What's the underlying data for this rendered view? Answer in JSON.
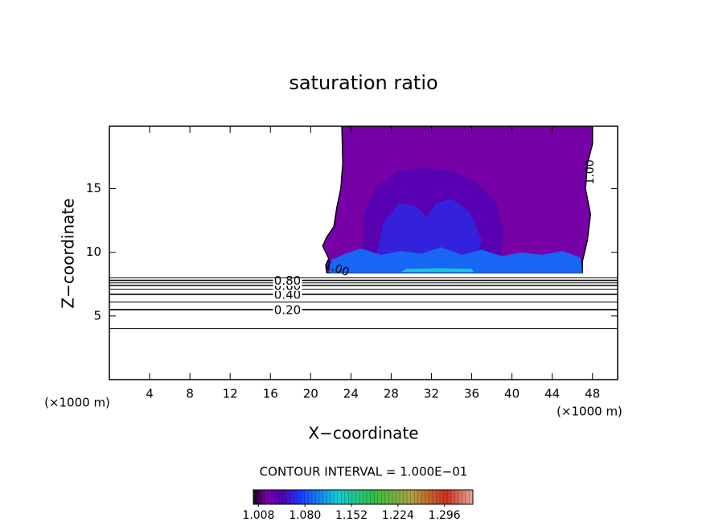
{
  "chart_data": {
    "type": "contour",
    "title": "saturation ratio",
    "x_label": "X−coordinate",
    "y_label": "Z−coordinate",
    "x_unit": "(×1000 m)",
    "interval_note": "CONTOUR INTERVAL = 1.000E−01",
    "xlim": [
      0,
      50.5
    ],
    "ylim": [
      0,
      19.9
    ],
    "xticks": [
      4,
      8,
      12,
      16,
      20,
      24,
      28,
      32,
      36,
      40,
      44,
      48
    ],
    "yticks": [
      5,
      10,
      15
    ],
    "contours": [
      {
        "level": 0.1,
        "z": 4.0
      },
      {
        "level": 0.2,
        "label": "0.20",
        "z": 5.5
      },
      {
        "level": 0.3,
        "z": 6.1
      },
      {
        "level": 0.4,
        "label": "0.40",
        "z": 6.7
      },
      {
        "level": 0.5,
        "z": 7.1
      },
      {
        "level": 0.6,
        "label": "0.60",
        "z": 7.4
      },
      {
        "level": 0.7,
        "z": 7.6
      },
      {
        "level": 0.8,
        "label": "0.80",
        "z": 7.8
      },
      {
        "level": 0.9,
        "z": 8.0
      }
    ],
    "cloud_contour": {
      "level": 1.0,
      "label": "1.00"
    },
    "regions": [
      {
        "value": 1.02,
        "x": [
          21.6,
          21.5,
          21.8,
          21.2,
          21.6,
          22.3,
          22.6,
          23.0,
          23.2,
          23.1,
          48.0,
          48.0,
          47.5,
          47.3,
          47.8,
          47.5,
          47.3,
          47.0,
          47.0
        ],
        "z": [
          8.4,
          9.0,
          9.5,
          10.5,
          11.2,
          12.0,
          13.5,
          15.0,
          17.0,
          19.9,
          19.9,
          18.5,
          17.0,
          15.0,
          13.0,
          11.0,
          10.3,
          9.3,
          8.4
        ]
      },
      {
        "value": 1.04,
        "x": [
          25.0,
          25.3,
          26.5,
          28.5,
          31.0,
          34.0,
          36.5,
          38.5,
          39.2,
          38.8,
          36.0,
          30.0,
          26.0
        ],
        "z": [
          9.5,
          13.0,
          15.2,
          16.3,
          16.7,
          16.4,
          15.5,
          13.8,
          11.5,
          9.5,
          9.0,
          9.0,
          9.2
        ]
      },
      {
        "value": 1.06,
        "x": [
          26.5,
          27.2,
          28.8,
          30.5,
          31.5,
          32.5,
          34.0,
          35.8,
          37.0,
          36.5,
          32.0,
          27.5
        ],
        "z": [
          9.6,
          12.3,
          13.9,
          13.6,
          12.8,
          13.9,
          14.2,
          13.2,
          11.0,
          9.5,
          9.3,
          9.4
        ]
      },
      {
        "value": 1.09,
        "x": [
          21.8,
          22.0,
          23.5,
          25.0,
          27.0,
          29.0,
          31.0,
          33.0,
          35.0,
          37.0,
          39.0,
          41.0,
          43.0,
          45.0,
          46.8,
          47.0
        ],
        "z": [
          8.4,
          9.4,
          9.9,
          10.3,
          9.8,
          10.1,
          9.9,
          10.4,
          9.8,
          10.2,
          9.7,
          10.0,
          9.8,
          10.1,
          9.6,
          8.4
        ]
      },
      {
        "value": 1.13,
        "x": [
          29.0,
          29.5,
          33.0,
          36.0,
          36.2
        ],
        "z": [
          8.45,
          8.7,
          8.75,
          8.7,
          8.45
        ]
      }
    ],
    "colorbar": {
      "clim": [
        1.0,
        1.34
      ],
      "ticks": [
        1.008,
        {
          "value": 1.08,
          "label": "1.080"
        },
        1.152,
        1.224,
        1.296
      ],
      "stops": [
        {
          "offset": 0,
          "color": "#1a0024"
        },
        {
          "offset": 0.06,
          "color": "#7a00aa"
        },
        {
          "offset": 0.13,
          "color": "#5200b4"
        },
        {
          "offset": 0.22,
          "color": "#1640ff"
        },
        {
          "offset": 0.38,
          "color": "#18c8d8"
        },
        {
          "offset": 0.55,
          "color": "#30c040"
        },
        {
          "offset": 0.72,
          "color": "#b0a040"
        },
        {
          "offset": 0.88,
          "color": "#d03020"
        },
        {
          "offset": 1,
          "color": "#e8a8a0"
        }
      ]
    }
  }
}
